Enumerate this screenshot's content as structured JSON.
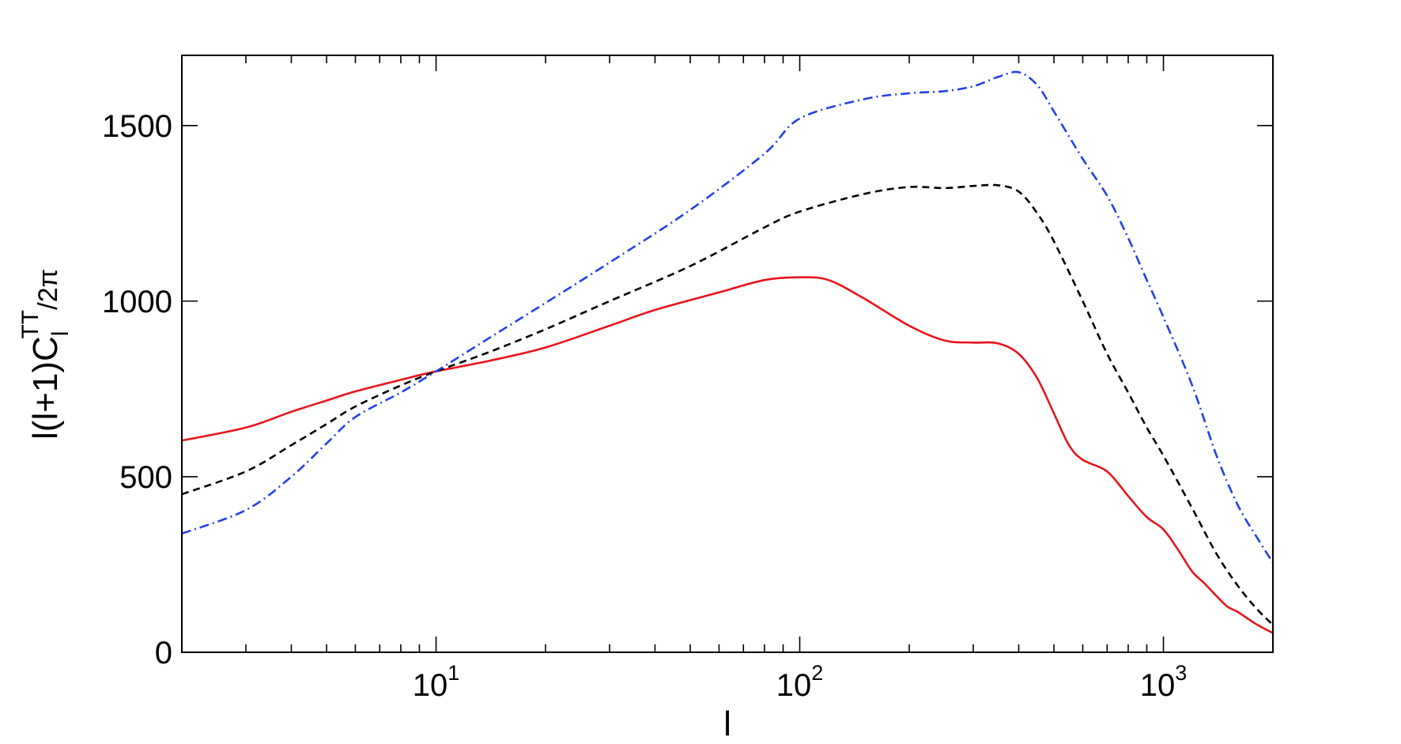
{
  "chart_data": {
    "type": "line",
    "xlabel": "l",
    "ylabel": {
      "main": "l(l+1)C",
      "subscript": "l",
      "superscript": "TT",
      "tail": "/2π"
    },
    "xscale": "log",
    "xlim": [
      2,
      2000
    ],
    "ylim": [
      0,
      1700
    ],
    "x_ticks": [
      {
        "value": 10,
        "base": "10",
        "exponent": "1"
      },
      {
        "value": 100,
        "base": "10",
        "exponent": "2"
      },
      {
        "value": 1000,
        "base": "10",
        "exponent": "3"
      }
    ],
    "y_ticks": [
      {
        "value": 0,
        "label": "0"
      },
      {
        "value": 500,
        "label": "500"
      },
      {
        "value": 1000,
        "label": "1000"
      },
      {
        "value": 1500,
        "label": "1500"
      }
    ],
    "grid": false,
    "legend": "none",
    "series": [
      {
        "color": "#e8141b",
        "style": "solid",
        "points": [
          [
            2,
            603
          ],
          [
            3,
            640
          ],
          [
            4,
            685
          ],
          [
            5,
            717
          ],
          [
            6,
            743
          ],
          [
            8,
            776
          ],
          [
            10,
            800
          ],
          [
            14,
            830
          ],
          [
            20,
            868
          ],
          [
            30,
            930
          ],
          [
            40,
            975
          ],
          [
            60,
            1025
          ],
          [
            80,
            1060
          ],
          [
            100,
            1068
          ],
          [
            120,
            1060
          ],
          [
            150,
            1008
          ],
          [
            200,
            930
          ],
          [
            250,
            888
          ],
          [
            300,
            882
          ],
          [
            350,
            880
          ],
          [
            400,
            850
          ],
          [
            450,
            780
          ],
          [
            500,
            680
          ],
          [
            550,
            590
          ],
          [
            600,
            548
          ],
          [
            700,
            515
          ],
          [
            800,
            445
          ],
          [
            900,
            385
          ],
          [
            1000,
            350
          ],
          [
            1100,
            290
          ],
          [
            1200,
            230
          ],
          [
            1300,
            195
          ],
          [
            1400,
            160
          ],
          [
            1500,
            130
          ],
          [
            1600,
            115
          ],
          [
            1800,
            80
          ],
          [
            2000,
            55
          ]
        ]
      },
      {
        "color": "#000000",
        "style": "dashed",
        "points": [
          [
            2,
            450
          ],
          [
            3,
            515
          ],
          [
            4,
            590
          ],
          [
            5,
            650
          ],
          [
            6,
            700
          ],
          [
            8,
            760
          ],
          [
            10,
            800
          ],
          [
            14,
            855
          ],
          [
            20,
            920
          ],
          [
            30,
            1000
          ],
          [
            50,
            1100
          ],
          [
            80,
            1210
          ],
          [
            100,
            1255
          ],
          [
            150,
            1305
          ],
          [
            200,
            1325
          ],
          [
            250,
            1322
          ],
          [
            300,
            1328
          ],
          [
            350,
            1330
          ],
          [
            400,
            1312
          ],
          [
            450,
            1250
          ],
          [
            500,
            1170
          ],
          [
            600,
            1000
          ],
          [
            700,
            850
          ],
          [
            800,
            740
          ],
          [
            900,
            640
          ],
          [
            1000,
            560
          ],
          [
            1200,
            410
          ],
          [
            1400,
            280
          ],
          [
            1600,
            190
          ],
          [
            1800,
            125
          ],
          [
            2000,
            78
          ]
        ]
      },
      {
        "color": "#2440e8",
        "style": "dashdot",
        "points": [
          [
            2,
            338
          ],
          [
            3,
            405
          ],
          [
            4,
            500
          ],
          [
            5,
            595
          ],
          [
            6,
            670
          ],
          [
            8,
            740
          ],
          [
            10,
            800
          ],
          [
            14,
            895
          ],
          [
            20,
            995
          ],
          [
            30,
            1110
          ],
          [
            50,
            1260
          ],
          [
            80,
            1420
          ],
          [
            100,
            1520
          ],
          [
            150,
            1575
          ],
          [
            200,
            1592
          ],
          [
            250,
            1598
          ],
          [
            300,
            1612
          ],
          [
            350,
            1638
          ],
          [
            400,
            1652
          ],
          [
            450,
            1615
          ],
          [
            500,
            1540
          ],
          [
            600,
            1405
          ],
          [
            700,
            1300
          ],
          [
            800,
            1180
          ],
          [
            900,
            1060
          ],
          [
            1000,
            955
          ],
          [
            1200,
            760
          ],
          [
            1400,
            560
          ],
          [
            1600,
            420
          ],
          [
            1800,
            330
          ],
          [
            2000,
            255
          ]
        ]
      }
    ]
  }
}
